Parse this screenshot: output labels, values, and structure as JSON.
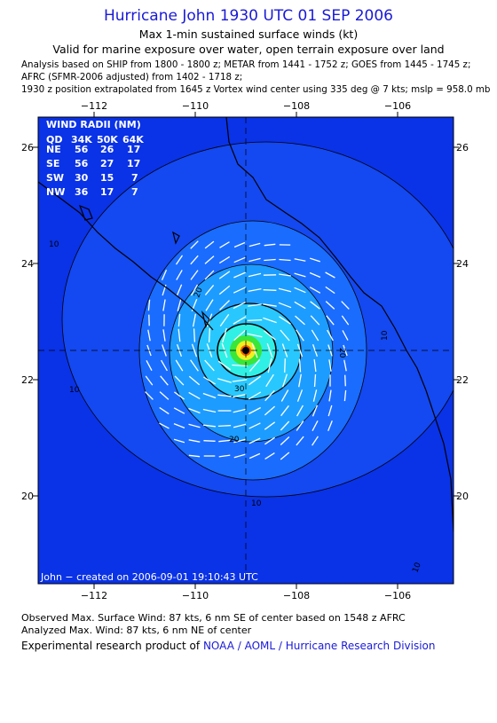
{
  "header": {
    "title": "Hurricane John 1930 UTC 01 SEP 2006",
    "subtitle1": "Max 1-min sustained surface winds (kt)",
    "subtitle2": "Valid for marine exposure over water, open terrain exposure over land",
    "analysis_lines": [
      "Analysis based on  SHIP from 1800 - 1800 z;  METAR from 1441 - 1752 z;  GOES from 1445 - 1745 z;",
      "AFRC (SFMR-2006 adjusted) from 1402 - 1718 z;",
      "1930 z position extrapolated from 1645 z Vortex wind center using 335 deg @ 7 kts; mslp = 958.0 mb"
    ]
  },
  "map": {
    "lon_ticks": [
      "−112",
      "−110",
      "−108",
      "−106"
    ],
    "lat_ticks": [
      "26",
      "24",
      "22",
      "20"
    ],
    "contour_labels": [
      "10",
      "10",
      "10",
      "10",
      "10",
      "20",
      "20",
      "20",
      "30"
    ],
    "credit_text": "John − created on 2006-09-01 19:10:43 UTC",
    "wind_radii": {
      "title": "WIND RADII (NM)",
      "header": [
        "QD",
        "34K",
        "50K",
        "64K"
      ],
      "rows": [
        [
          "NE",
          "56",
          "26",
          "17"
        ],
        [
          "SE",
          "56",
          "27",
          "17"
        ],
        [
          "SW",
          "30",
          "15",
          "7"
        ],
        [
          "NW",
          "36",
          "17",
          "7"
        ]
      ]
    },
    "colors": {
      "ocean": "#0a32e6",
      "band_10": "#1448f0",
      "band_20": "#1a6cff",
      "band_30": "#1d9cff",
      "band_40": "#28c8ff",
      "band_50": "#30f0e6",
      "band_60": "#39e639",
      "band_70": "#f0f020",
      "band_80": "#ff6000",
      "vectors": "#ffffff",
      "coast": "#000000"
    }
  },
  "footer": {
    "observed": "Observed Max. Surface Wind: 87 kts, 6 nm SE of center based on 1548 z AFRC",
    "analyzed": "Analyzed Max. Wind: 87 kts, 6 nm NE of center",
    "credit_prefix": "Experimental research product of",
    "credit_link": "NOAA / AOML / Hurricane Research Division"
  }
}
